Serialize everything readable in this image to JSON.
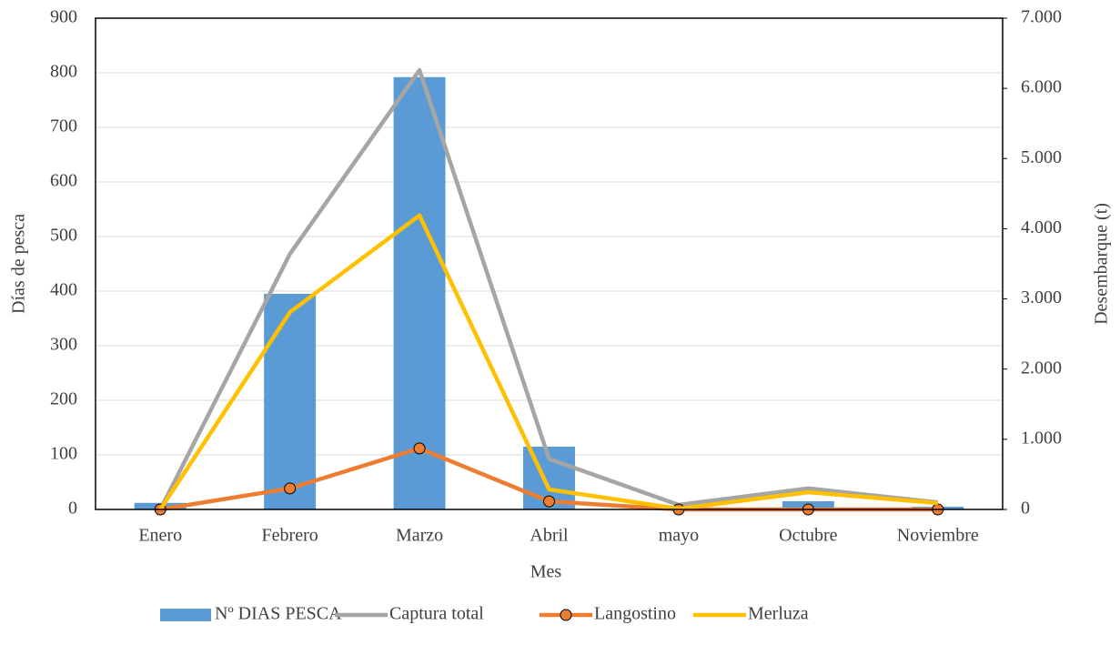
{
  "chart_data": {
    "type": "bar",
    "categories": [
      "Enero",
      "Febrero",
      "Marzo",
      "Abril",
      "mayo",
      "Octubre",
      "Noviembre"
    ],
    "x_label": "Mes",
    "y_label": "Días de pesca",
    "y2_label": "Desembarque (t)",
    "ylim": [
      0,
      900
    ],
    "yticks": [
      0,
      100,
      200,
      300,
      400,
      500,
      600,
      700,
      800,
      900
    ],
    "y2lim": [
      0,
      7000
    ],
    "y2ticks": [
      0,
      {
        "value": 1000,
        "label": "1.000"
      },
      {
        "value": 2000,
        "label": "2.000"
      },
      {
        "value": 3000,
        "label": "3.000"
      },
      {
        "value": 4000,
        "label": "4.000"
      },
      {
        "value": 5000,
        "label": "5.000"
      },
      {
        "value": 6000,
        "label": "6.000"
      },
      {
        "value": 7000,
        "label": "7.000"
      }
    ],
    "grid": true,
    "legend": "bottom",
    "series": [
      {
        "name": "Nº DIAS PESCA",
        "type": "bar",
        "color": "#5b9bd5",
        "values": [
          12,
          395,
          792,
          115,
          0,
          15,
          5
        ]
      },
      {
        "name": "Captura total",
        "type": "line",
        "axis": "y2",
        "color": "#a5a5a5",
        "values": [
          0,
          3640,
          6260,
          720,
          65,
          300,
          100
        ]
      },
      {
        "name": "Langostino",
        "type": "line",
        "axis": "y2",
        "marker": true,
        "color": "#ed7d31",
        "values": [
          0,
          300,
          870,
          115,
          0,
          0,
          0
        ]
      },
      {
        "name": "Merluza",
        "type": "line",
        "axis": "y2",
        "color": "#ffc000",
        "values": [
          0,
          2810,
          4190,
          285,
          10,
          245,
          90
        ]
      }
    ]
  }
}
